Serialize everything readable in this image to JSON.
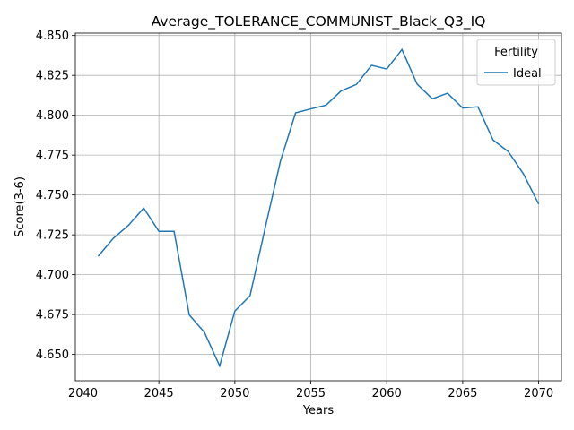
{
  "chart_data": {
    "type": "line",
    "title": "Average_TOLERANCE_COMMUNIST_Black_Q3_IQ",
    "xlabel": "Years",
    "ylabel": "Score(3-6)",
    "xlim": [
      2039.5,
      2071.5
    ],
    "ylim": [
      4.6335,
      4.8515
    ],
    "xticks": [
      2040,
      2045,
      2050,
      2055,
      2060,
      2065,
      2070
    ],
    "yticks": [
      4.65,
      4.675,
      4.7,
      4.725,
      4.75,
      4.775,
      4.8,
      4.825,
      4.85
    ],
    "grid": true,
    "legend": {
      "title": "Fertility",
      "position": "top-right"
    },
    "series": [
      {
        "name": "Ideal",
        "color": "#1f77b4",
        "x": [
          2041,
          2042,
          2043,
          2044,
          2045,
          2046,
          2047,
          2048,
          2049,
          2050,
          2051,
          2052,
          2053,
          2054,
          2055,
          2056,
          2057,
          2058,
          2059,
          2060,
          2061,
          2062,
          2063,
          2064,
          2065,
          2066,
          2067,
          2068,
          2069,
          2070
        ],
        "values": [
          4.7115,
          4.7228,
          4.731,
          4.7418,
          4.7272,
          4.7272,
          4.6748,
          4.6638,
          4.6428,
          4.6772,
          4.6868,
          4.7295,
          4.7712,
          4.8015,
          4.804,
          4.8063,
          4.8153,
          4.8193,
          4.8313,
          4.829,
          4.8412,
          4.8195,
          4.8103,
          4.8138,
          4.8045,
          4.8053,
          4.7845,
          4.7772,
          4.7632,
          4.7443
        ]
      }
    ]
  }
}
